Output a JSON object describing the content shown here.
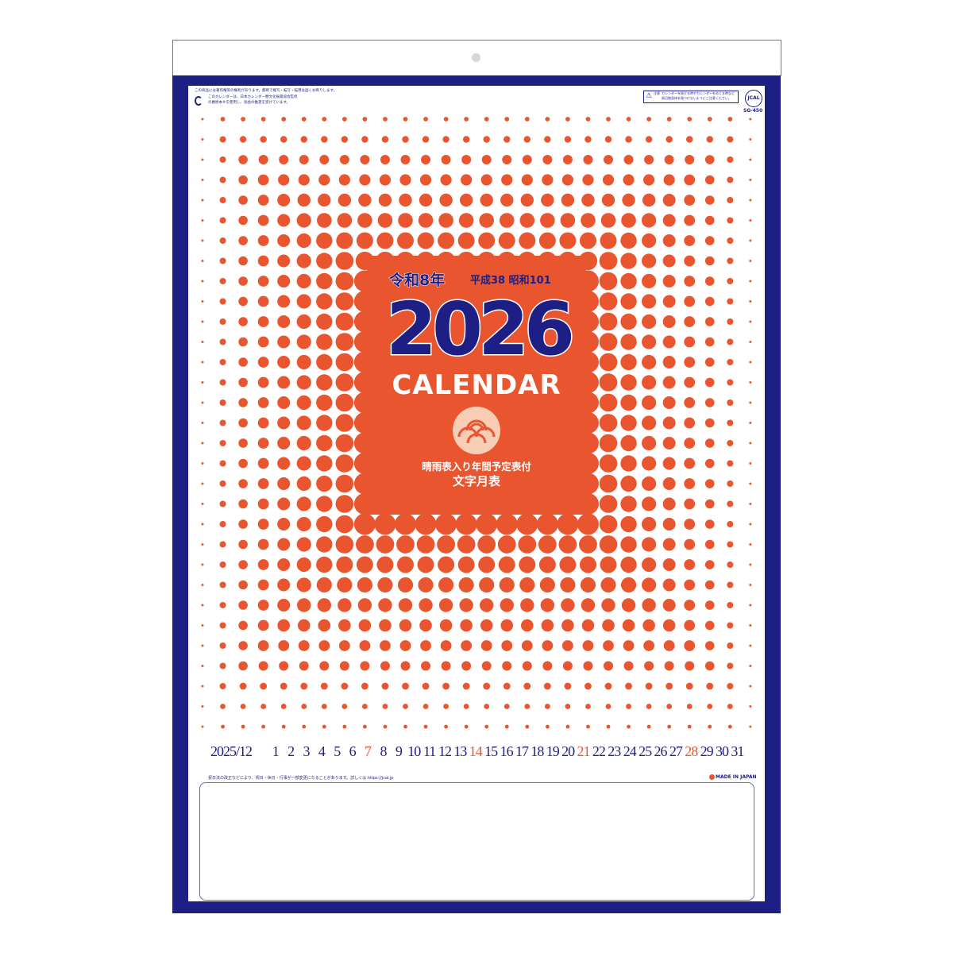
{
  "header": {
    "notice_top_left_1": "この商品には著作権等の権利があります。無断で複写・転写・転用は固くお断りします。",
    "notice_top_left_2": "このカレンダーは、日本カレンダー暦文化振興協会監修の暦原本®を使用し、協会の推奨を受けています。",
    "notice_top_right": "カレンダーを掛ける時やカレンダーをめくる時など周辺物身体を傷つけないようにご注意ください。",
    "caution_label": "注意",
    "jcal_logo": "JCAL",
    "product_code": "SG-450"
  },
  "cover": {
    "era_reiwa": "令和8年",
    "era_other": "平成38 昭和101",
    "year": "2026",
    "title": "CALENDAR",
    "subtitle_1": "晴雨表入り年間予定表付",
    "subtitle_2": "文字月表"
  },
  "month_strip": {
    "year_month": "2025/12",
    "days": [
      "1",
      "2",
      "3",
      "4",
      "5",
      "6",
      "7",
      "8",
      "9",
      "10",
      "11",
      "12",
      "13",
      "14",
      "15",
      "16",
      "17",
      "18",
      "19",
      "20",
      "21",
      "22",
      "23",
      "24",
      "25",
      "26",
      "27",
      "28",
      "29",
      "30",
      "31"
    ],
    "sundays": [
      "7",
      "14",
      "21",
      "28"
    ]
  },
  "footer": {
    "footnote": "祝日法の改正などにより、祝日・休日・行事が一部変更になることがあります。詳しくは https://jcal.jp",
    "made_in": "MADE IN JAPAN"
  },
  "colors": {
    "navy": "#1e1f85",
    "orange": "#e8552f",
    "peach": "#f7cdb6"
  }
}
